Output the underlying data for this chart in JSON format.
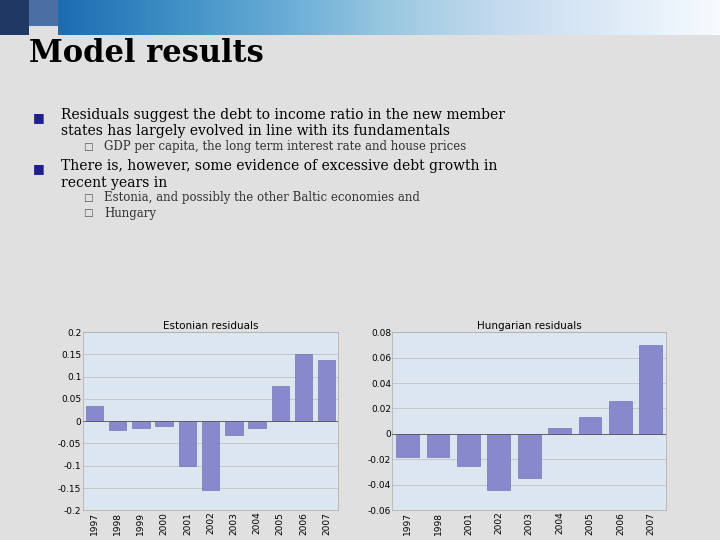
{
  "title": "Model results",
  "bullet1_line1": "Residuals suggest the debt to income ratio in the new member",
  "bullet1_line2": "states has largely evolved in line with its fundamentals",
  "sub_bullet1": "GDP per capita, the long term interest rate and house prices",
  "bullet2_line1": "There is, however, some evidence of excessive debt growth in",
  "bullet2_line2": "recent years in",
  "sub_bullet2a": "Estonia, and possibly the other Baltic economies and",
  "sub_bullet2b": "Hungary",
  "estonian_title": "Estonian residuals",
  "hungarian_title": "Hungarian residuals",
  "estonian_years": [
    "1997",
    "1998",
    "1999",
    "2000",
    "2001",
    "2002",
    "2003",
    "2004",
    "2005",
    "2006",
    "2007"
  ],
  "estonian_values": [
    0.033,
    -0.02,
    -0.015,
    -0.01,
    -0.1,
    -0.155,
    -0.03,
    -0.015,
    0.08,
    0.15,
    0.138
  ],
  "estonian_ylim": [
    -0.2,
    0.2
  ],
  "estonian_yticks": [
    -0.2,
    -0.15,
    -0.1,
    -0.05,
    0,
    0.05,
    0.1,
    0.15,
    0.2
  ],
  "hungarian_years": [
    "1997",
    "1998",
    "2001",
    "2002",
    "2003",
    "2004",
    "2005",
    "2006",
    "2007"
  ],
  "hungarian_values": [
    -0.018,
    -0.018,
    -0.025,
    -0.044,
    -0.035,
    0.005,
    0.013,
    0.026,
    0.07
  ],
  "hungarian_ylim": [
    -0.06,
    0.08
  ],
  "hungarian_yticks": [
    -0.06,
    -0.04,
    -0.02,
    0,
    0.02,
    0.04,
    0.06,
    0.08
  ],
  "bar_color": "#8888cc",
  "bar_edge_color": "#6666aa",
  "chart_bg": "#dce6f1",
  "slide_bg": "#e0e0e0",
  "header_dark": "#1f3864",
  "header_mid": "#4a6fa5",
  "header_light": "#c8d8e8"
}
